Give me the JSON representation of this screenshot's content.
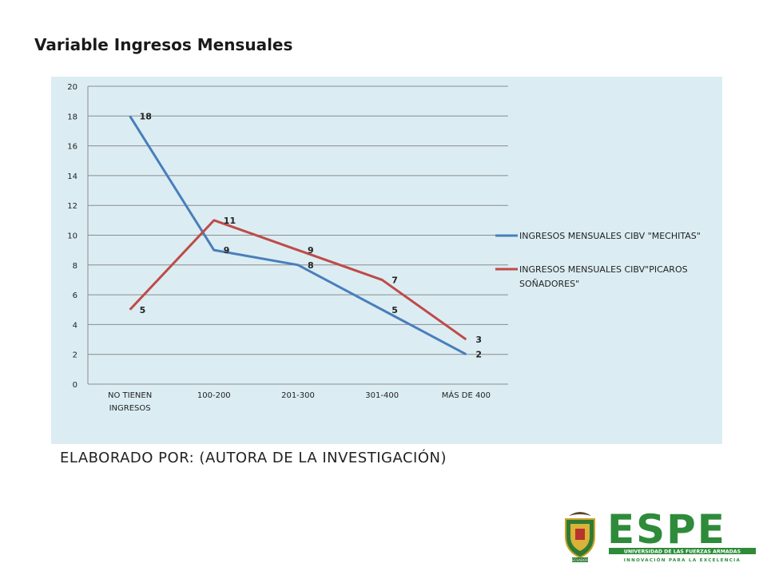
{
  "slide": {
    "title": "Variable Ingresos Mensuales",
    "caption": "ELABORADO POR: (AUTORA DE LA INVESTIGACIÓN)"
  },
  "logo": {
    "wordmark": "ESPE",
    "line1": "UNIVERSIDAD DE LAS FUERZAS ARMADAS",
    "line2": "INNOVACIÓN PARA LA EXCELENCIA",
    "seal_text": "ECUADOR"
  },
  "chart_data": {
    "type": "line",
    "categories": [
      [
        "NO TIENEN",
        "INGRESOS"
      ],
      [
        "100-200"
      ],
      [
        "201-300"
      ],
      [
        "301-400"
      ],
      [
        "MÁS DE 400"
      ]
    ],
    "series": [
      {
        "name": "INGRESOS MENSUALES CIBV \"MECHITAS\"",
        "values": [
          18,
          9,
          8,
          5,
          2
        ],
        "color": "#4a7ebb"
      },
      {
        "name": "INGRESOS MENSUALES CIBV\"PICAROS SOÑADORES\"",
        "values": [
          5,
          11,
          9,
          7,
          3
        ],
        "color": "#be4b48"
      }
    ],
    "ylim": [
      0,
      20
    ],
    "yticks": [
      0,
      2,
      4,
      6,
      8,
      10,
      12,
      14,
      16,
      18,
      20
    ],
    "grid": true,
    "legend": "right",
    "data_labels": true
  }
}
